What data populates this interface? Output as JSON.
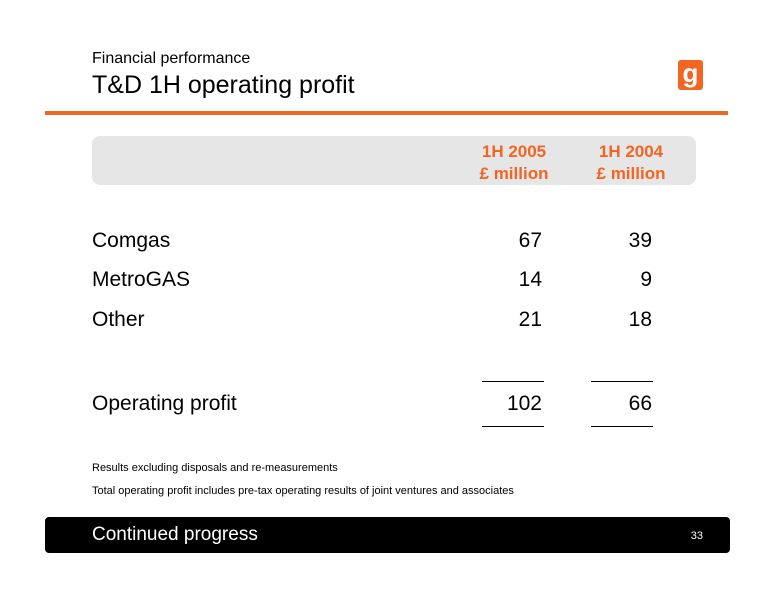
{
  "header": {
    "subtitle": "Financial performance",
    "title": "T&D 1H operating profit",
    "logo_letter": "g"
  },
  "columns": [
    {
      "line1": "1H 2005",
      "line2": "£ million"
    },
    {
      "line1": "1H 2004",
      "line2": "£ million"
    }
  ],
  "rows": [
    {
      "label": "Comgas",
      "v2005": "67",
      "v2004": "39"
    },
    {
      "label": "MetroGAS",
      "v2005": "14",
      "v2004": "9"
    },
    {
      "label": "Other",
      "v2005": "21",
      "v2004": "18"
    }
  ],
  "total": {
    "label": "Operating profit",
    "v2005": "102",
    "v2004": "66"
  },
  "notes": [
    "Results excluding disposals and re-measurements",
    "Total operating profit includes pre-tax operating results of joint ventures and associates"
  ],
  "footer": {
    "text": "Continued progress",
    "page": "33"
  },
  "colors": {
    "accent": "#f26522",
    "band": "#e6e6e6",
    "footer_bg": "#000000"
  }
}
